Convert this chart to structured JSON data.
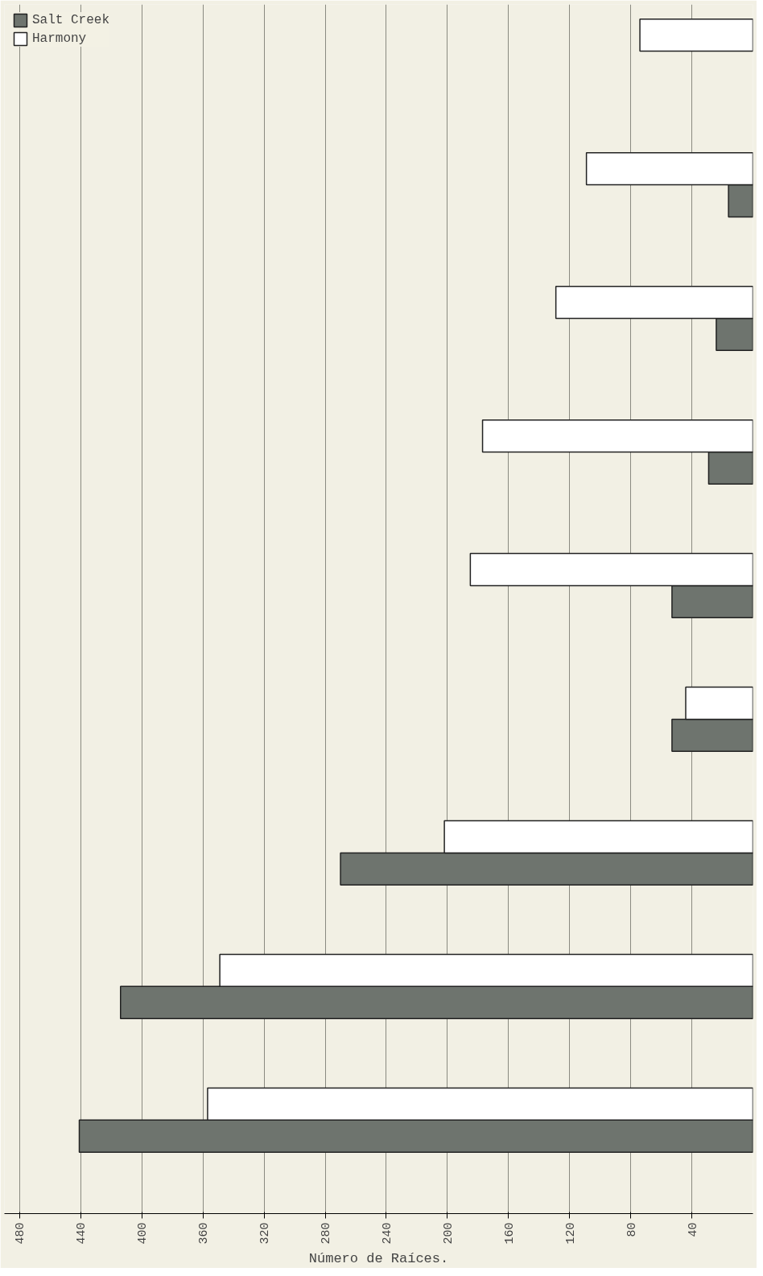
{
  "chart_data": {
    "type": "bar",
    "orientation": "horizontal",
    "xlabel": "Número de Raíces.",
    "categories": [
      null,
      null,
      null,
      null,
      null,
      null,
      null,
      null,
      null
    ],
    "series": [
      {
        "name": "Salt Creek",
        "color": "#6e746e",
        "values": [
          null,
          16,
          24,
          29,
          53,
          53,
          270,
          414,
          441
        ]
      },
      {
        "name": "Harmony",
        "color": "#ffffff",
        "values": [
          74,
          109,
          129,
          177,
          185,
          44,
          202,
          349,
          357
        ]
      }
    ],
    "xlim": [
      490,
      0
    ],
    "xticks": [
      40,
      80,
      120,
      160,
      200,
      240,
      280,
      320,
      360,
      400,
      440,
      480
    ],
    "grid": "x",
    "legend": "top left"
  }
}
